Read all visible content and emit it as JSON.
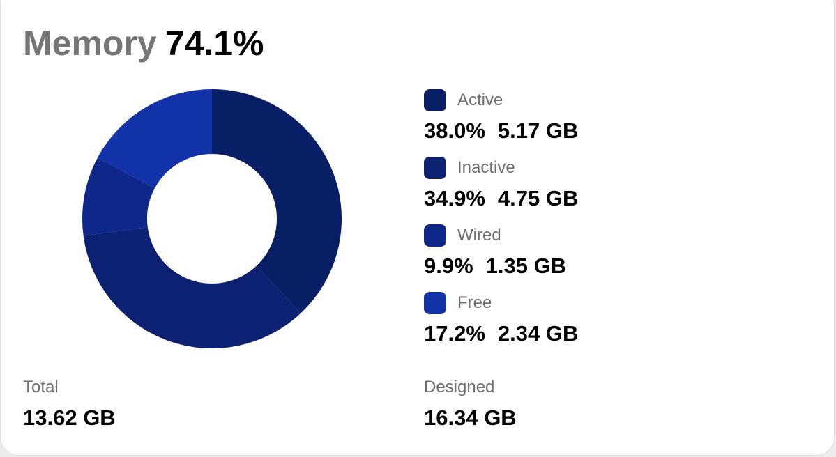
{
  "header": {
    "title": "Memory",
    "usage": "74.1%"
  },
  "chart_data": {
    "type": "donut",
    "categories": [
      "Active",
      "Inactive",
      "Wired",
      "Free"
    ],
    "values": [
      38.0,
      34.9,
      9.9,
      17.2
    ],
    "value_labels": [
      "38.0%",
      "34.9%",
      "9.9%",
      "17.2%"
    ],
    "sizes": [
      "5.17 GB",
      "4.75 GB",
      "1.35 GB",
      "2.34 GB"
    ],
    "colors": [
      "#081f66",
      "#0c2171",
      "#0f2788",
      "#1232a8"
    ]
  },
  "footer": {
    "total_label": "Total",
    "total": "13.62 GB",
    "designed_label": "Designed",
    "designed": "16.34 GB"
  }
}
